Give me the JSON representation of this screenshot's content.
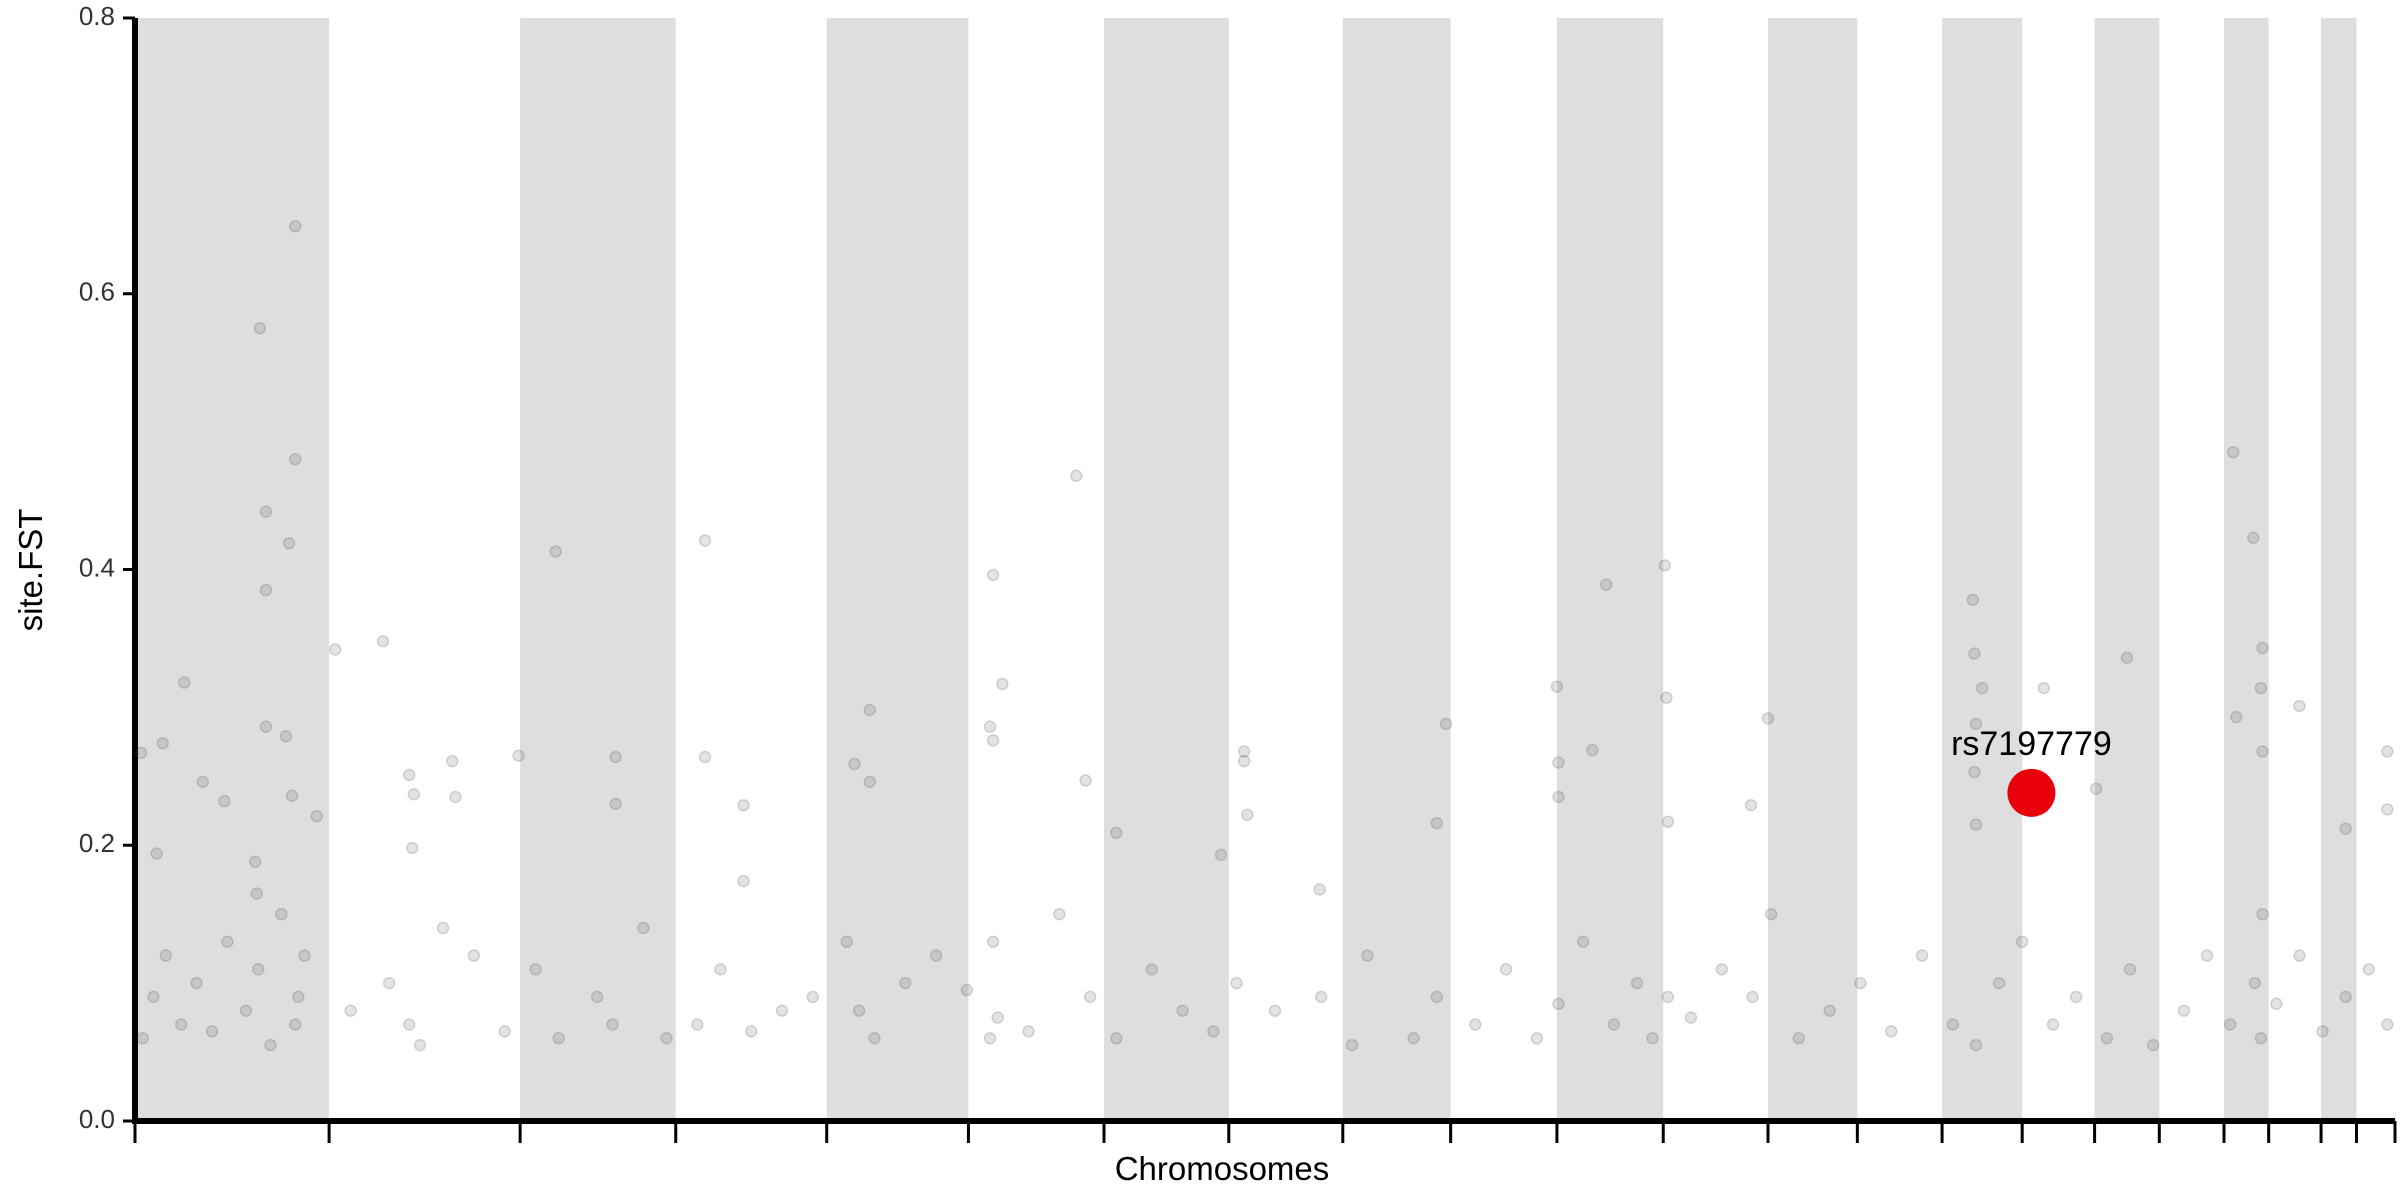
{
  "chart_data": {
    "type": "scatter",
    "x_label": "Chromosomes",
    "y_label": "site.FST",
    "xlim": [
      0,
      1467
    ],
    "ylim": [
      0,
      0.8
    ],
    "yticks": [
      {
        "value": 0,
        "label": "0.0"
      },
      0.2,
      0.4,
      0.6,
      0.8
    ],
    "chromosome_bounds": [
      0,
      126,
      250,
      351,
      449,
      541,
      629,
      710,
      784,
      854,
      923,
      992,
      1060,
      1118,
      1173,
      1225,
      1272,
      1314,
      1356,
      1385,
      1419,
      1442,
      1467
    ],
    "band_color": "#dedede",
    "series": [
      {
        "color": "#444444",
        "x": [
          81,
          104,
          104,
          85,
          100,
          85,
          85,
          98,
          32,
          18,
          4,
          14,
          44,
          58,
          102,
          118,
          78,
          79,
          130,
          161,
          178,
          206,
          181,
          180,
          208,
          249,
          273,
          312,
          312,
          370,
          370,
          395,
          395,
          477,
          467,
          477,
          557,
          563,
          555,
          557,
          611,
          617,
          637,
          720,
          720,
          722,
          705,
          769,
          851,
          845,
          923,
          924,
          924,
          946,
          955,
          993,
          994,
          995,
          1060,
          1049,
          1193,
          1194,
          1199,
          1195,
          1194,
          1195,
          1239,
          1293,
          1273,
          1362,
          1375,
          1381,
          1380,
          1381,
          1364,
          1405,
          1462,
          1435,
          1462,
          5,
          12,
          20,
          30,
          40,
          50,
          60,
          72,
          80,
          88,
          95,
          104,
          106,
          110,
          140,
          165,
          178,
          185,
          200,
          220,
          240,
          260,
          275,
          300,
          310,
          330,
          345,
          365,
          380,
          400,
          420,
          440,
          462,
          470,
          480,
          500,
          520,
          540,
          555,
          557,
          560,
          580,
          600,
          620,
          637,
          660,
          680,
          700,
          715,
          740,
          770,
          790,
          800,
          830,
          845,
          870,
          890,
          910,
          924,
          940,
          960,
          975,
          985,
          995,
          1010,
          1030,
          1050,
          1062,
          1080,
          1100,
          1120,
          1140,
          1160,
          1180,
          1195,
          1210,
          1225,
          1245,
          1260,
          1280,
          1295,
          1310,
          1330,
          1345,
          1360,
          1376,
          1380,
          1381,
          1390,
          1405,
          1420,
          1435,
          1450,
          1462
        ],
        "values": [
          0.575,
          0.649,
          0.48,
          0.442,
          0.419,
          0.385,
          0.286,
          0.279,
          0.318,
          0.274,
          0.267,
          0.194,
          0.246,
          0.232,
          0.236,
          0.221,
          0.188,
          0.165,
          0.342,
          0.348,
          0.251,
          0.261,
          0.237,
          0.198,
          0.235,
          0.265,
          0.413,
          0.264,
          0.23,
          0.421,
          0.264,
          0.229,
          0.174,
          0.298,
          0.259,
          0.246,
          0.396,
          0.317,
          0.286,
          0.276,
          0.468,
          0.247,
          0.209,
          0.268,
          0.261,
          0.222,
          0.193,
          0.168,
          0.288,
          0.216,
          0.315,
          0.26,
          0.235,
          0.269,
          0.389,
          0.403,
          0.307,
          0.217,
          0.292,
          0.229,
          0.378,
          0.339,
          0.314,
          0.288,
          0.253,
          0.215,
          0.314,
          0.336,
          0.241,
          0.485,
          0.423,
          0.343,
          0.314,
          0.268,
          0.293,
          0.301,
          0.268,
          0.212,
          0.226,
          0.06,
          0.09,
          0.12,
          0.07,
          0.1,
          0.065,
          0.13,
          0.08,
          0.11,
          0.055,
          0.15,
          0.07,
          0.09,
          0.12,
          0.08,
          0.1,
          0.07,
          0.055,
          0.14,
          0.12,
          0.065,
          0.11,
          0.06,
          0.09,
          0.07,
          0.14,
          0.06,
          0.07,
          0.11,
          0.065,
          0.08,
          0.09,
          0.13,
          0.08,
          0.06,
          0.1,
          0.12,
          0.095,
          0.06,
          0.13,
          0.075,
          0.065,
          0.15,
          0.09,
          0.06,
          0.11,
          0.08,
          0.065,
          0.1,
          0.08,
          0.09,
          0.055,
          0.12,
          0.06,
          0.09,
          0.07,
          0.11,
          0.06,
          0.085,
          0.13,
          0.07,
          0.1,
          0.06,
          0.09,
          0.075,
          0.11,
          0.09,
          0.15,
          0.06,
          0.08,
          0.1,
          0.065,
          0.12,
          0.07,
          0.055,
          0.1,
          0.13,
          0.07,
          0.09,
          0.06,
          0.11,
          0.055,
          0.08,
          0.12,
          0.07,
          0.1,
          0.06,
          0.15,
          0.085,
          0.12,
          0.065,
          0.09,
          0.11,
          0.07
        ]
      },
      {
        "color": "#e8000b",
        "highlight": true,
        "x": [
          1231
        ],
        "values": [
          0.238
        ],
        "labels": [
          "rs7197779"
        ]
      }
    ]
  }
}
